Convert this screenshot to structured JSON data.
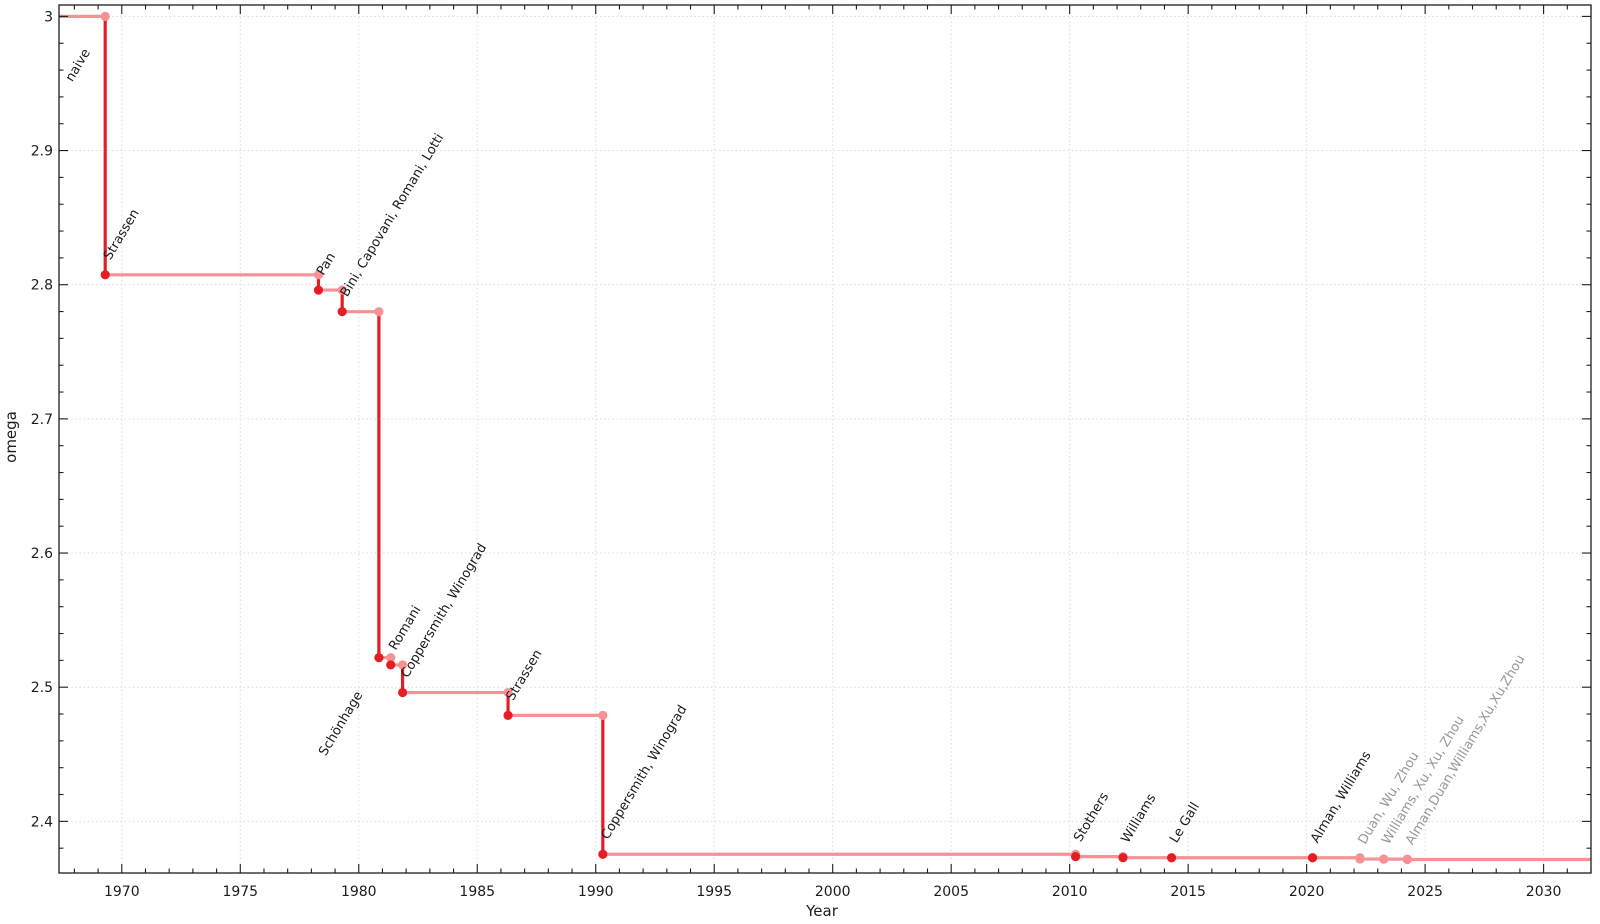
{
  "chart_data": {
    "type": "line",
    "step_mode": "hv",
    "xlabel": "Year",
    "ylabel": "omega",
    "xlim": [
      1967.35,
      2032.0
    ],
    "ylim": [
      2.3615,
      3.0085
    ],
    "grid": "dotted-major",
    "legend": "none",
    "x_major_ticks": [
      1970,
      1975,
      1980,
      1985,
      1990,
      1995,
      2000,
      2005,
      2010,
      2015,
      2020,
      2025,
      2030
    ],
    "x_tick_labels": [
      "1970",
      "1975",
      "1980",
      "1985",
      "1990",
      "1995",
      "2000",
      "2005",
      "2010",
      "2015",
      "2020",
      "2025",
      "2030"
    ],
    "x_minor_step": 1,
    "y_major_ticks": [
      2.4,
      2.5,
      2.6,
      2.7,
      2.8,
      2.9,
      3.0
    ],
    "y_tick_labels": [
      "2.4",
      "2.5",
      "2.6",
      "2.7",
      "2.8",
      "2.9",
      "3"
    ],
    "y_minor_step": 0.02,
    "initial": {
      "label": "naive",
      "omega": 3.0,
      "label_dx": -33,
      "label_dy": 66
    },
    "events": [
      {
        "label": "Strassen",
        "year": 1969.3,
        "omega": 2.8074,
        "status": "established"
      },
      {
        "label": "Pan",
        "year": 1978.3,
        "omega": 2.796,
        "status": "established"
      },
      {
        "label": "Bini, Capovani, Romani, Lotti",
        "year": 1979.3,
        "omega": 2.7799,
        "status": "established"
      },
      {
        "label": "Schönhage",
        "year": 1980.85,
        "omega": 2.522,
        "status": "established",
        "label_anchor": "end",
        "label_dx": -16,
        "label_dy": 37
      },
      {
        "label": "Romani",
        "year": 1981.35,
        "omega": 2.5166,
        "status": "established"
      },
      {
        "label": "Coppersmith, Winograd",
        "year": 1981.85,
        "omega": 2.496,
        "status": "established"
      },
      {
        "label": "Strassen",
        "year": 1986.3,
        "omega": 2.479,
        "status": "established"
      },
      {
        "label": "Coppersmith, Winograd",
        "year": 1990.3,
        "omega": 2.3755,
        "status": "established"
      },
      {
        "label": "Stothers",
        "year": 2010.25,
        "omega": 2.3737,
        "status": "established"
      },
      {
        "label": "Williams",
        "year": 2012.25,
        "omega": 2.3729,
        "status": "established"
      },
      {
        "label": "Le Gall",
        "year": 2014.3,
        "omega": 2.37286,
        "status": "established"
      },
      {
        "label": "Alman, Williams",
        "year": 2020.25,
        "omega": 2.37286,
        "status": "established"
      },
      {
        "label": "Duan, Wu, Zhou",
        "year": 2022.25,
        "omega": 2.37188,
        "status": "new"
      },
      {
        "label": "Williams, Xu, Xu, Zhou",
        "year": 2023.25,
        "omega": 2.371866,
        "status": "new"
      },
      {
        "label": "Alman,Duan,Williams,Xu,Xu,Zhou",
        "year": 2024.25,
        "omega": 2.371552,
        "status": "new"
      }
    ],
    "annotation": {
      "rotation_deg": -59,
      "font_px": 13,
      "default_dx": 5,
      "default_dy": -14
    },
    "colors": {
      "line_drop": "#e51e25",
      "line_flat": "#f59296",
      "point_established": "#e51e25",
      "point_new": "#f59296",
      "label_established": "#1c1c1c",
      "label_new": "#979797",
      "grid": "#dadada",
      "axis": "#1c1c1c",
      "tick_label": "#1c1c1c",
      "background": "#ffffff"
    }
  }
}
